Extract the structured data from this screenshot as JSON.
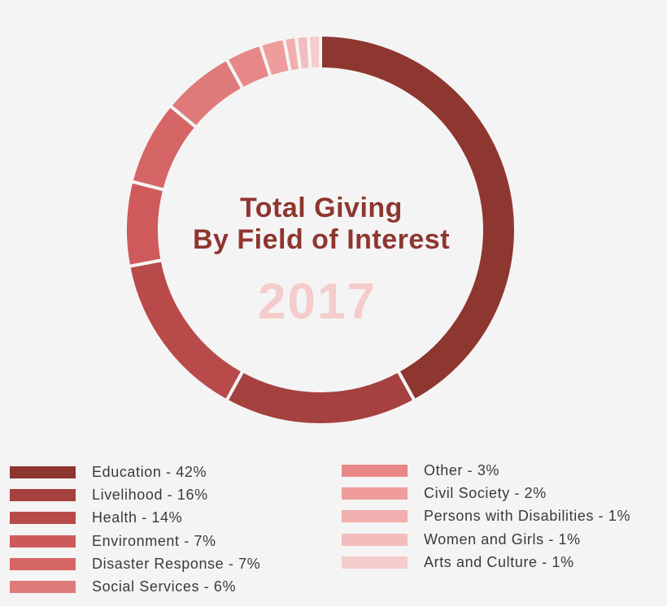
{
  "chart_data": {
    "type": "pie",
    "title_line1": "Total Giving",
    "title_line2": "By Field of Interest",
    "year": "2017",
    "legend_placement": "bottom",
    "slices": [
      {
        "label": "Education - 42%",
        "category": "Education",
        "value": 42,
        "color": "#8e3630"
      },
      {
        "label": "Livelihood - 16%",
        "category": "Livelihood",
        "value": 16,
        "color": "#a5413f"
      },
      {
        "label": "Health - 14%",
        "category": "Health",
        "value": 14,
        "color": "#b94a4a"
      },
      {
        "label": "Environment - 7%",
        "category": "Environment",
        "value": 7,
        "color": "#cf5a5b"
      },
      {
        "label": "Disaster Response - 7%",
        "category": "Disaster Response",
        "value": 7,
        "color": "#d66566"
      },
      {
        "label": "Social Services - 6%",
        "category": "Social Services",
        "value": 6,
        "color": "#df7a7b"
      },
      {
        "label": "Other - 3%",
        "category": "Other",
        "value": 3,
        "color": "#e88788"
      },
      {
        "label": "Civil Society - 2%",
        "category": "Civil Society",
        "value": 2,
        "color": "#ee9c9c"
      },
      {
        "label": "Persons with Disabilities - 1%",
        "category": "Persons with Disabilities",
        "value": 1,
        "color": "#f1aeae"
      },
      {
        "label": "Women and Girls - 1%",
        "category": "Women and Girls",
        "value": 1,
        "color": "#f4bdbd"
      },
      {
        "label": "Arts and Culture - 1%",
        "category": "Arts and Culture",
        "value": 1,
        "color": "#f5cccc"
      }
    ]
  }
}
